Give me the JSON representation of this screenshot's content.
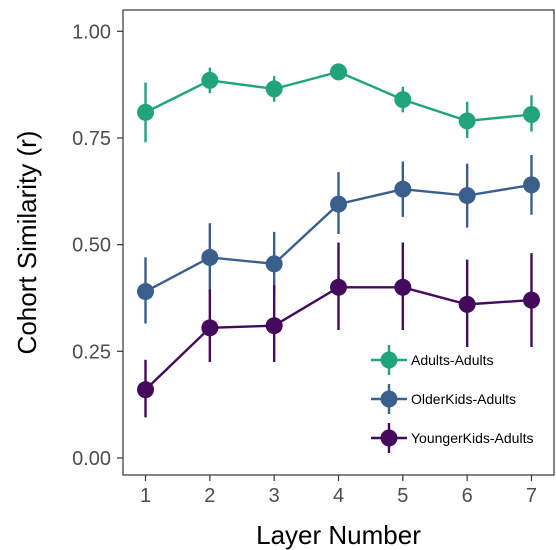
{
  "chart_data": {
    "type": "line",
    "xlabel": "Layer Number",
    "ylabel": "Cohort Similarity (r)",
    "x": [
      1,
      2,
      3,
      4,
      5,
      6,
      7
    ],
    "xticks": [
      "1",
      "2",
      "3",
      "4",
      "5",
      "6",
      "7"
    ],
    "yticks": [
      "0.00",
      "0.25",
      "0.50",
      "0.75",
      "1.00"
    ],
    "ylim": [
      -0.04,
      1.05
    ],
    "xlim": [
      0.65,
      7.35
    ],
    "grid": false,
    "legend_position": "bottom-right",
    "series": [
      {
        "name": "Adults-Adults",
        "color": "#21a47c",
        "values": [
          0.81,
          0.885,
          0.865,
          0.905,
          0.84,
          0.79,
          0.805
        ],
        "err_low": [
          0.74,
          0.855,
          0.835,
          0.89,
          0.81,
          0.75,
          0.765
        ],
        "err_high": [
          0.88,
          0.915,
          0.895,
          0.92,
          0.87,
          0.835,
          0.85
        ]
      },
      {
        "name": "OlderKids-Adults",
        "color": "#3a5f8c",
        "values": [
          0.39,
          0.47,
          0.455,
          0.595,
          0.63,
          0.615,
          0.64
        ],
        "err_low": [
          0.315,
          0.39,
          0.385,
          0.525,
          0.565,
          0.54,
          0.57
        ],
        "err_high": [
          0.47,
          0.55,
          0.53,
          0.67,
          0.695,
          0.69,
          0.71
        ]
      },
      {
        "name": "YoungerKids-Adults",
        "color": "#440a5c",
        "values": [
          0.16,
          0.305,
          0.31,
          0.4,
          0.4,
          0.36,
          0.37
        ],
        "err_low": [
          0.095,
          0.225,
          0.225,
          0.3,
          0.3,
          0.26,
          0.26
        ],
        "err_high": [
          0.23,
          0.395,
          0.405,
          0.505,
          0.505,
          0.465,
          0.48
        ]
      }
    ]
  }
}
